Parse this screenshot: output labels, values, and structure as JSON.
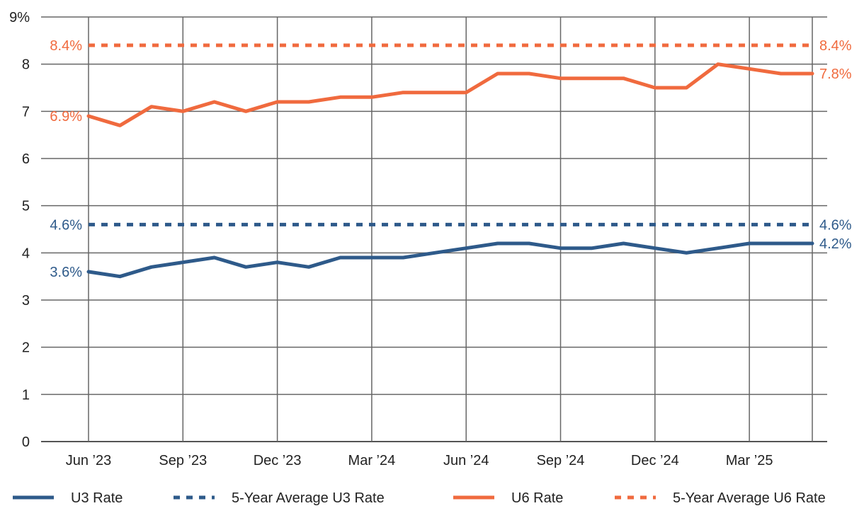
{
  "chart_data": {
    "type": "line",
    "x": [
      "Jun 2023",
      "Jul 2023",
      "Aug 2023",
      "Sep 2023",
      "Oct 2023",
      "Nov 2023",
      "Dec 2023",
      "Jan 2024",
      "Feb 2024",
      "Mar 2024",
      "Apr 2024",
      "May 2024",
      "Jun 2024",
      "Jul 2024",
      "Aug 2024",
      "Sep 2024",
      "Oct 2024",
      "Nov 2024",
      "Dec 2024",
      "Jan 2025",
      "Feb 2025",
      "Mar 2025",
      "Apr 2025",
      "May 2025"
    ],
    "x_tick_labels": [
      {
        "index": 0,
        "label": "Jun ’23"
      },
      {
        "index": 3,
        "label": "Sep ’23"
      },
      {
        "index": 6,
        "label": "Dec ’23"
      },
      {
        "index": 9,
        "label": "Mar ’24"
      },
      {
        "index": 12,
        "label": "Jun ’24"
      },
      {
        "index": 15,
        "label": "Sep ’24"
      },
      {
        "index": 18,
        "label": "Dec ’24"
      },
      {
        "index": 21,
        "label": "Mar ’25"
      }
    ],
    "y_tick_labels": [
      "0",
      "1",
      "2",
      "3",
      "4",
      "5",
      "6",
      "7",
      "8",
      "9%"
    ],
    "ylim": [
      0,
      9
    ],
    "grid": true,
    "legend_position": "bottom",
    "series": [
      {
        "name": "U3 Rate",
        "color": "#2e5a8a",
        "style": "solid",
        "values": [
          3.6,
          3.5,
          3.7,
          3.8,
          3.9,
          3.7,
          3.8,
          3.7,
          3.9,
          3.9,
          3.9,
          4.0,
          4.1,
          4.2,
          4.2,
          4.1,
          4.1,
          4.2,
          4.1,
          4.0,
          4.1,
          4.2,
          4.2,
          4.2
        ],
        "start_label": "3.6%",
        "end_label": "4.2%"
      },
      {
        "name": "5-Year Average U3 Rate",
        "color": "#2e5a8a",
        "style": "dashed",
        "value": 4.6,
        "start_label": "4.6%",
        "end_label": "4.6%"
      },
      {
        "name": "U6 Rate",
        "color": "#f06a3e",
        "style": "solid",
        "values": [
          6.9,
          6.7,
          7.1,
          7.0,
          7.2,
          7.0,
          7.2,
          7.2,
          7.3,
          7.3,
          7.4,
          7.4,
          7.4,
          7.8,
          7.8,
          7.7,
          7.7,
          7.7,
          7.5,
          7.5,
          8.0,
          7.9,
          7.8,
          7.8
        ],
        "start_label": "6.9%",
        "end_label": "7.8%"
      },
      {
        "name": "5-Year Average U6 Rate",
        "color": "#f06a3e",
        "style": "dashed",
        "value": 8.4,
        "start_label": "8.4%",
        "end_label": "8.4%"
      }
    ]
  }
}
